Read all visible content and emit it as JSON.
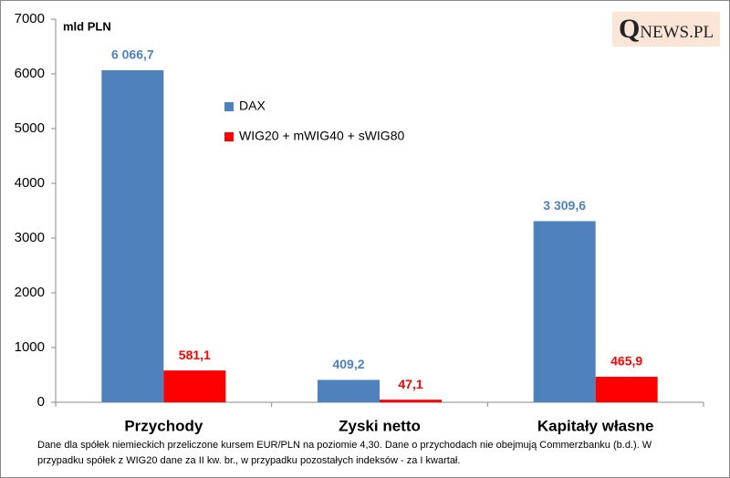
{
  "chart_data": {
    "type": "bar",
    "y_label": "mld PLN",
    "logo": "QNEWS.PL",
    "categories": [
      "Przychody",
      "Zyski netto",
      "Kapitały własne"
    ],
    "series": [
      {
        "name": "DAX",
        "color": "#4f81bd",
        "values": [
          6066.7,
          409.2,
          3309.6
        ],
        "value_labels": [
          "6 066,7",
          "409,2",
          "3 309,6"
        ]
      },
      {
        "name": "WIG20 + mWIG40 + sWIG80",
        "color": "#ff0000",
        "values": [
          581.1,
          47.1,
          465.9
        ],
        "value_labels": [
          "581,1",
          "47,1",
          "465,9"
        ]
      }
    ],
    "ylim": [
      0,
      7000
    ],
    "yticks": [
      0,
      1000,
      2000,
      3000,
      4000,
      5000,
      6000,
      7000
    ],
    "footnote": [
      "Dane dla spółek niemieckich przeliczone kursem EUR/PLN na poziomie 4,30. Dane o przychodach nie obejmują Commerzbanku (b.d.). W",
      "przypadku spółek z WIG20 dane za II kw. br., w przypadku pozostałych indeksów - za I kwartał."
    ]
  }
}
